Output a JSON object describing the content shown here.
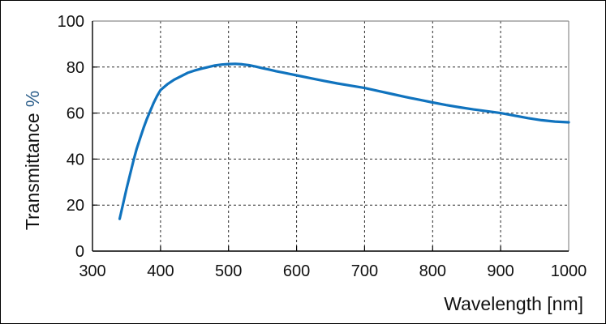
{
  "figure": {
    "background": "#ffffff",
    "border_color": "#000000",
    "frame_top_right_color": "#8c8c8c",
    "axis_color": "#000000",
    "grid_color": "#2a2a2a",
    "ylabel_unit_color": "#2d5f8b"
  },
  "chart_data": {
    "type": "line",
    "title": "",
    "xlabel": "Wavelength [nm]",
    "ylabel": "Transmittance",
    "ylabel_unit": "%",
    "xlim": [
      300,
      1000
    ],
    "ylim": [
      0,
      100
    ],
    "xticks": [
      300,
      400,
      500,
      600,
      700,
      800,
      900,
      1000
    ],
    "yticks": [
      0,
      20,
      40,
      60,
      80,
      100
    ],
    "grid": "dashed-both-axes",
    "legend": "none",
    "line_color": "#1073be",
    "line_width": 3.2,
    "series": [
      {
        "name": "transmittance-curve",
        "x": [
          340,
          345,
          350,
          355,
          360,
          365,
          370,
          375,
          380,
          385,
          390,
          395,
          400,
          410,
          420,
          430,
          440,
          450,
          460,
          470,
          480,
          490,
          500,
          510,
          520,
          530,
          540,
          550,
          560,
          570,
          580,
          590,
          600,
          620,
          640,
          660,
          680,
          700,
          720,
          740,
          760,
          780,
          800,
          820,
          840,
          860,
          880,
          900,
          920,
          940,
          960,
          980,
          1000
        ],
        "y": [
          14,
          20.5,
          27,
          33,
          39,
          44.5,
          49,
          53.5,
          57.5,
          61,
          64.5,
          67.5,
          70,
          72.5,
          74.5,
          76,
          77.5,
          78.5,
          79.3,
          80,
          80.7,
          81.1,
          81.3,
          81.4,
          81.2,
          80.8,
          80.2,
          79.5,
          78.9,
          78.2,
          77.6,
          77,
          76.4,
          75.2,
          74,
          72.9,
          71.9,
          70.9,
          69.6,
          68.3,
          67,
          65.8,
          64.6,
          63.5,
          62.5,
          61.6,
          60.8,
          60,
          58.9,
          57.8,
          56.9,
          56.3,
          56
        ]
      }
    ]
  }
}
